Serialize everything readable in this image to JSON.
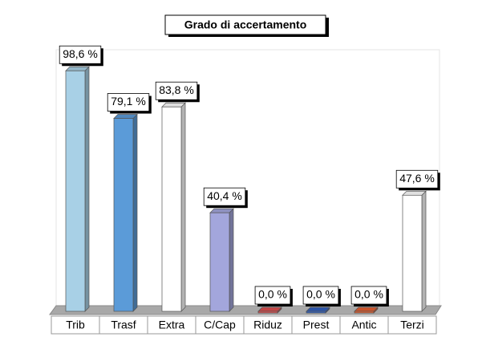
{
  "chart_data": {
    "type": "bar",
    "title": "Grado di accertamento",
    "categories": [
      "Trib",
      "Trasf",
      "Extra",
      "C/Cap",
      "Riduz",
      "Prest",
      "Antic",
      "Terzi"
    ],
    "values": [
      98.6,
      79.1,
      83.8,
      40.4,
      0,
      0,
      0,
      47.6
    ],
    "value_labels": [
      "98,6 %",
      "79,1 %",
      "83,8 %",
      "40,4 %",
      "0,0 %",
      "0,0 %",
      "0,0 %",
      "47,6 %"
    ],
    "colors": [
      "#a8d0e6",
      "#5b9bd8",
      "#ffffff",
      "#a3a6dc",
      "#e05050",
      "#3060c0",
      "#e86030",
      "#ffffff"
    ],
    "ylim": [
      0,
      100
    ]
  }
}
